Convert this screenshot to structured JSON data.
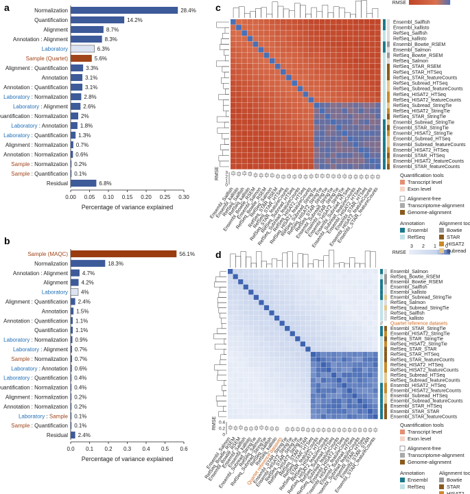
{
  "panel_labels": {
    "a": "a",
    "b": "b",
    "c": "c",
    "d": "d"
  },
  "colors": {
    "bar": "#3d5a99",
    "lab_bar": "#dce3f3",
    "sample_quartet": "#a0441a",
    "sample_maqc": "#9a3b10",
    "lab_text": "#1f6fb5",
    "sample_text": "#a0441a",
    "hm_red": "#c8553d",
    "hm_light": "#f4e1d8",
    "hm_blue": "#4a6fb5",
    "ensembl": "#1b7a8c",
    "refseq": "#bfe2e8",
    "transcript": "#e48f73",
    "exon": "#f6d5c7",
    "quartet_text": "#d2691e"
  },
  "chart_data": [
    {
      "id": "a",
      "type": "bar",
      "orientation": "horizontal",
      "xlabel": "Percentage of variance explained",
      "xlim": [
        0,
        0.3
      ],
      "xticks": [
        "0.00",
        "0.05",
        "0.10",
        "0.15",
        "0.20",
        "0.25",
        "0.30"
      ],
      "categories": [
        "Normalization",
        "Quantification",
        "Alignment",
        "Annotation : Alignment",
        "Laboratory",
        "Sample (Quartet)",
        "Alignment : Quantification",
        "Annotation",
        "Annotation : Quantification",
        "Laboratory : Normalization",
        "Laboratory : Alignment",
        "Quantification : Normalization",
        "Laboratory : Annotation",
        "Laboratory : Quantification",
        "Alignment : Normalization",
        "Annotation : Normalization",
        "Sample : Normalization",
        "Sample : Quantification",
        "Residual"
      ],
      "values": [
        0.284,
        0.142,
        0.087,
        0.083,
        0.063,
        0.056,
        0.033,
        0.031,
        0.031,
        0.028,
        0.026,
        0.02,
        0.018,
        0.013,
        0.007,
        0.006,
        0.002,
        0.001,
        0.068
      ],
      "value_labels": [
        "28.4%",
        "14.2%",
        "8.7%",
        "8.3%",
        "6.3%",
        "5.6%",
        "3.3%",
        "3.1%",
        "3.1%",
        "2.8%",
        "2.6%",
        "2%",
        "1.8%",
        "1.3%",
        "0.7%",
        "0.6%",
        "0.2%",
        "0.1%",
        "6.8%"
      ],
      "kinds": [
        "plain",
        "plain",
        "plain",
        "plain",
        "lab",
        "sample",
        "plain",
        "plain",
        "plain",
        "labx",
        "labx",
        "plain",
        "labx",
        "labx",
        "plain",
        "plain",
        "samplex",
        "samplex",
        "plain"
      ]
    },
    {
      "id": "b",
      "type": "bar",
      "orientation": "horizontal",
      "xlabel": "Percentage of variance explained",
      "xlim": [
        0,
        0.6
      ],
      "xticks": [
        "0.0",
        "0.1",
        "0.2",
        "0.3",
        "0.4",
        "0.5",
        "0.6"
      ],
      "categories": [
        "Sample (MAQC)",
        "Normalization",
        "Annotation : Alignment",
        "Alignment",
        "Laboratory",
        "Alignment : Quantification",
        "Annotation",
        "Annotation : Quantification",
        "Quantification",
        "Laboratory : Normalization",
        "Laboratory : Alignment",
        "Sample : Normalization",
        "Laboratory : Annotation",
        "Laboratory : Quantification",
        "Quantification : Normalization",
        "Alignment : Normalization",
        "Annotation : Normalization",
        "Laboratory : Sample",
        "Sample : Quantification",
        "Residual"
      ],
      "values": [
        0.561,
        0.183,
        0.047,
        0.042,
        0.04,
        0.024,
        0.015,
        0.011,
        0.011,
        0.009,
        0.007,
        0.007,
        0.006,
        0.004,
        0.004,
        0.002,
        0.002,
        0.001,
        0.001,
        0.024
      ],
      "value_labels": [
        "56.1%",
        "18.3%",
        "4.7%",
        "4.2%",
        "4%",
        "2.4%",
        "1.5%",
        "1.1%",
        "1.1%",
        "0.9%",
        "0.7%",
        "0.7%",
        "0.6%",
        "0.4%",
        "0.4%",
        "0.2%",
        "0.2%",
        "0.1%",
        "0.1%",
        "2.4%"
      ],
      "kinds": [
        "sample",
        "plain",
        "plain",
        "plain",
        "lab",
        "plain",
        "plain",
        "plain",
        "plain",
        "labx",
        "labx",
        "samplex",
        "labx",
        "labx",
        "plain",
        "plain",
        "plain",
        "labsample",
        "samplex",
        "plain"
      ]
    },
    {
      "id": "c",
      "type": "heatmap",
      "legend_title": "RMSE",
      "scale_ticks": [
        "3",
        "2",
        "1",
        "0"
      ],
      "box_ylabel": "RMSE",
      "box_ticks": [
        "3",
        "2",
        "1",
        "0"
      ],
      "box_ymax": 3,
      "rows": [
        "Ensembl_Sailfish",
        "Ensembl_kallisto",
        "RefSeq_Sailfish",
        "RefSeq_kallisto",
        "Ensembl_Bowtie_RSEM",
        "Ensembl_Salmon",
        "RefSeq_Bowtie_RSEM",
        "RefSeq_Salmon",
        "RefSeq_STAR_RSEM",
        "RefSeq_STAR_HTSeq",
        "RefSeq_STAR_featureCounts",
        "RefSeq_Subread_HTSeq",
        "RefSeq_Subread_featureCounts",
        "RefSeq_HISAT2_HTSeq",
        "RefSeq_HISAT2_featureCounts",
        "RefSeq_Subread_StringTie",
        "RefSeq_HISAT2_StringTie",
        "RefSeq_STAR_StringTie",
        "Ensembl_Subread_StringTie",
        "Ensembl_STAR_StringTie",
        "Ensembl_HISAT2_StringTie",
        "Ensembl_Subread_HTSeq",
        "Ensembl_Subread_featureCounts",
        "Ensembl_HISAT2_HTSeq",
        "Ensembl_STAR_HTSeq",
        "Ensembl_HISAT2_featureCounts",
        "Ensembl_STAR_featureCounts"
      ],
      "box_medians": [
        2.7,
        2.6,
        2.7,
        2.6,
        2.3,
        2.2,
        2.3,
        2.2,
        2.0,
        1.9,
        2.0,
        1.9,
        2.0,
        1.9,
        2.0,
        2.1,
        2.1,
        2.1,
        2.0,
        2.0,
        2.0,
        1.9,
        1.9,
        1.9,
        1.9,
        1.9,
        1.9
      ]
    },
    {
      "id": "d",
      "type": "heatmap",
      "legend_title": "RMSE",
      "scale_ticks": [
        "3",
        "2",
        "1",
        "0"
      ],
      "box_ylabel": "RMSE",
      "box_ticks": [
        "0.4",
        "0.2",
        "0"
      ],
      "box_ymax": 0.4,
      "rows": [
        "Ensembl_Salmon",
        "RefSeq_Bowtie_RSEM",
        "Ensembl_Bowtie_RSEM",
        "Ensembl_Sailfish",
        "Ensembl_kallisto",
        "Ensembl_Subread_StringTie",
        "RefSeq_Salmon",
        "RefSeq_Subread_StringTie",
        "RefSeq_Sailfish",
        "RefSeq_kallisto",
        "Quartet reference datasets",
        "Ensembl_STAR_StringTie",
        "Ensembl_HISAT2_StringTie",
        "RefSeq_STAR_StringTie",
        "RefSeq_HISAT2_StringTie",
        "RefSeq_STAR_STAR",
        "RefSeq_STAR_HTSeq",
        "RefSeq_STAR_featureCounts",
        "RefSeq_HISAT2_HTSeq",
        "RefSeq_HISAT2_featureCounts",
        "RefSeq_Subread_HTSeq",
        "RefSeq_Subread_featureCounts",
        "Ensembl_HISAT2_HTSeq",
        "Ensembl_HISAT2_featureCounts",
        "Ensembl_Subread_HTSeq",
        "Ensembl_Subread_featureCounts",
        "Ensembl_STAR_HTSeq",
        "Ensembl_STAR_STAR",
        "Ensembl_STAR_featureCounts"
      ],
      "box_medians": [
        0.22,
        0.2,
        0.22,
        0.18,
        0.18,
        0.2,
        0.22,
        0.2,
        0.18,
        0.18,
        0.0,
        0.16,
        0.16,
        0.16,
        0.16,
        0.14,
        0.14,
        0.14,
        0.14,
        0.14,
        0.14,
        0.14,
        0.14,
        0.14,
        0.14,
        0.14,
        0.14,
        0.14,
        0.14
      ]
    }
  ],
  "legend": {
    "quant_title": "Quantification tools",
    "transcript": "Transcript level",
    "exon": "Exon level",
    "af": "Alignment-free",
    "ta": "Transcriptome-alignment",
    "ga": "Genome-alignment",
    "annot_title": "Annotation",
    "ensembl": "Ensembl",
    "refseq": "RefSeq",
    "align_title": "Alignment tools",
    "bowtie": "Bowtie",
    "star": "STAR",
    "hisat2": "HISAT2",
    "subread": "Subread"
  },
  "symbols": {
    "break": "//"
  }
}
